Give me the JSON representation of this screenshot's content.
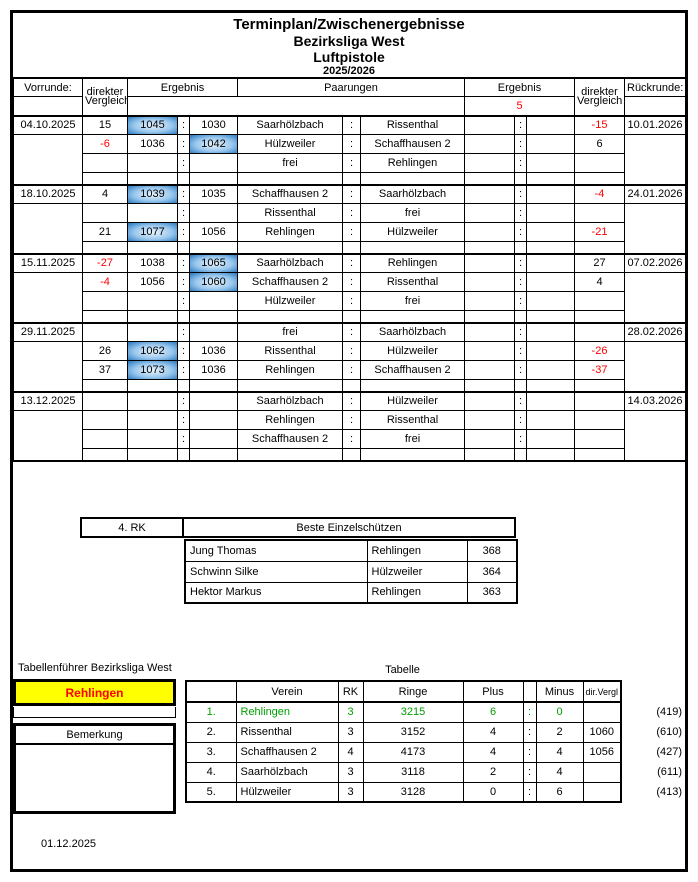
{
  "title": {
    "line1": "Terminplan/Zwischenergebnisse",
    "line2": "Bezirksliga West",
    "line3": "Luftpistole",
    "line4": "2025/2026"
  },
  "colors": {
    "highlight_blue": "#2d7cc2",
    "negative_red": "#ff0000",
    "leader_green": "#00a000",
    "leader_box_yellow": "#ffff00",
    "leader_box_text_red": "#ff0000"
  },
  "schedule": {
    "headers": {
      "vorrunde": "Vorrunde:",
      "direkter": "direkter",
      "vergleich": "Vergleich",
      "ergebnis_left": "Ergebnis",
      "paarungen": "Paarungen",
      "ergebnis_right": "Ergebnis",
      "rueckrunde": "Rückrunde:"
    },
    "round_note": "5",
    "blocks": [
      {
        "date": "04.10.2025",
        "return_date": "10.01.2026",
        "rows": [
          {
            "dv": "15",
            "s1": "1045",
            "s1h": true,
            "s2": "1030",
            "tl": "Saarhölzbach",
            "tlb": true,
            "tr": "Rissenthal",
            "dvr": "-15"
          },
          {
            "dv": "-6",
            "s1": "1036",
            "s2": "1042",
            "s2h": true,
            "tl": "Hülzweiler",
            "tr": "Schaffhausen 2",
            "trb": true,
            "dvr": "6"
          },
          {
            "tl": "frei",
            "tr": "Rehlingen"
          }
        ]
      },
      {
        "date": "18.10.2025",
        "return_date": "24.01.2026",
        "rows": [
          {
            "dv": "4",
            "s1": "1039",
            "s1h": true,
            "s2": "1035",
            "tl": "Schaffhausen 2",
            "tlb": true,
            "tr": "Saarhölzbach",
            "dvr": "-4"
          },
          {
            "tl": "Rissenthal",
            "tr": "frei"
          },
          {
            "dv": "21",
            "s1": "1077",
            "s1h": true,
            "s2": "1056",
            "tl": "Rehlingen",
            "tlb": true,
            "tr": "Hülzweiler",
            "dvr": "-21"
          }
        ]
      },
      {
        "date": "15.11.2025",
        "return_date": "07.02.2026",
        "rows": [
          {
            "dv": "-27",
            "s1": "1038",
            "s2": "1065",
            "s2h": true,
            "tl": "Saarhölzbach",
            "tr": "Rehlingen",
            "trb": true,
            "dvr": "27"
          },
          {
            "dv": "-4",
            "s1": "1056",
            "s2": "1060",
            "s2h": true,
            "tl": "Schaffhausen 2",
            "tr": "Rissenthal",
            "trb": true,
            "dvr": "4"
          },
          {
            "tl": "Hülzweiler",
            "tr": "frei"
          }
        ]
      },
      {
        "date": "29.11.2025",
        "return_date": "28.02.2026",
        "rows": [
          {
            "tl": "frei",
            "tr": "Saarhölzbach"
          },
          {
            "dv": "26",
            "s1": "1062",
            "s1h": true,
            "s2": "1036",
            "tl": "Rissenthal",
            "tlb": true,
            "tr": "Hülzweiler",
            "dvr": "-26"
          },
          {
            "dv": "37",
            "s1": "1073",
            "s1h": true,
            "s2": "1036",
            "tl": "Rehlingen",
            "tlb": true,
            "tr": "Schaffhausen 2",
            "dvr": "-37"
          }
        ]
      },
      {
        "date": "13.12.2025",
        "return_date": "14.03.2026",
        "rows": [
          {
            "tl": "Saarhölzbach",
            "tr": "Hülzweiler"
          },
          {
            "tl": "Rehlingen",
            "tr": "Rissenthal"
          },
          {
            "tl": "Schaffhausen 2",
            "tr": "frei"
          }
        ]
      }
    ]
  },
  "best_shooters": {
    "rank_label": "4. RK",
    "title": "Beste Einzelschützen",
    "rows": [
      {
        "name": "Jung Thomas",
        "club": "Rehlingen",
        "score": "368"
      },
      {
        "name": "Schwinn Silke",
        "club": "Hülzweiler",
        "score": "364"
      },
      {
        "name": "Hektor Markus",
        "club": "Rehlingen",
        "score": "363"
      }
    ]
  },
  "leader": {
    "label": "Tabellenführer Bezirksliga West",
    "team": "Rehlingen"
  },
  "remark": {
    "label": "Bemerkung",
    "text": ""
  },
  "standings": {
    "title": "Tabelle",
    "headers": {
      "verein": "Verein",
      "rk": "RK",
      "ringe": "Ringe",
      "plus": "Plus",
      "minus": "Minus",
      "dirvergl": "dir.Vergl"
    },
    "rows": [
      {
        "rank": "1.",
        "verein": "Rehlingen",
        "rk": "3",
        "ringe": "3215",
        "plus": "6",
        "minus": "0",
        "dirvergl": "",
        "annotation": "(419)",
        "leader": true
      },
      {
        "rank": "2.",
        "verein": "Rissenthal",
        "rk": "3",
        "ringe": "3152",
        "plus": "4",
        "minus": "2",
        "dirvergl": "1060",
        "annotation": "(610)",
        "leader": false
      },
      {
        "rank": "3.",
        "verein": "Schaffhausen 2",
        "rk": "4",
        "ringe": "4173",
        "plus": "4",
        "minus": "4",
        "dirvergl": "1056",
        "annotation": "(427)",
        "leader": false
      },
      {
        "rank": "4.",
        "verein": "Saarhölzbach",
        "rk": "3",
        "ringe": "3118",
        "plus": "2",
        "minus": "4",
        "dirvergl": "",
        "annotation": "(611)",
        "leader": false
      },
      {
        "rank": "5.",
        "verein": "Hülzweiler",
        "rk": "3",
        "ringe": "3128",
        "plus": "0",
        "minus": "6",
        "dirvergl": "",
        "annotation": "(413)",
        "leader": false
      }
    ]
  },
  "footer": {
    "date": "01.12.2025"
  }
}
